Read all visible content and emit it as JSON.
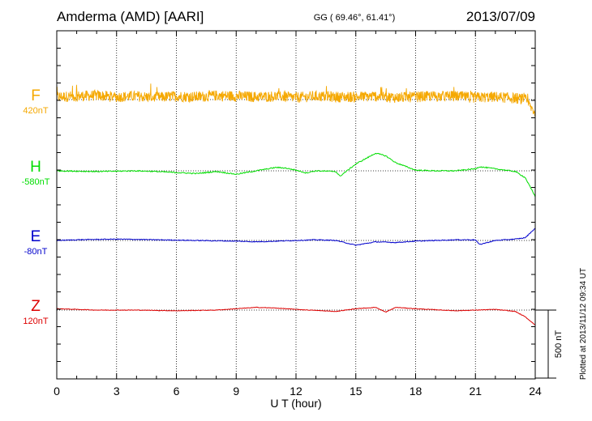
{
  "header": {
    "station": "Amderma (AMD)  [AARI]",
    "coords": "GG ( 69.46°,  61.41°)",
    "date": "2013/07/09"
  },
  "footer": {
    "plotted": "Plotted at 2013/11/12 09:34 UT",
    "scale": "500 nT"
  },
  "colors": {
    "F": "#f5a800",
    "H": "#00dd00",
    "E": "#0000cc",
    "Z": "#dd0000",
    "frame": "#000000"
  },
  "chart_data": {
    "type": "line",
    "title": "Amderma (AMD)  [AARI]",
    "xlabel": "U T (hour)",
    "ylabel": "",
    "xlim": [
      0,
      24
    ],
    "xticks": [
      0,
      3,
      6,
      9,
      12,
      15,
      18,
      21,
      24
    ],
    "grid": true,
    "scale_bar_nT": 500,
    "series": [
      {
        "name": "F",
        "baseline": "420nT",
        "noise_nT": 40,
        "points": [
          [
            0,
            20
          ],
          [
            1,
            25
          ],
          [
            2,
            30
          ],
          [
            3,
            20
          ],
          [
            4,
            25
          ],
          [
            5,
            15
          ],
          [
            6,
            25
          ],
          [
            7,
            20
          ],
          [
            8,
            30
          ],
          [
            9,
            25
          ],
          [
            10,
            20
          ],
          [
            11,
            25
          ],
          [
            12,
            15
          ],
          [
            13,
            25
          ],
          [
            14,
            20
          ],
          [
            15,
            20
          ],
          [
            16,
            25
          ],
          [
            17,
            15
          ],
          [
            18,
            20
          ],
          [
            19,
            25
          ],
          [
            20,
            25
          ],
          [
            21,
            15
          ],
          [
            22,
            20
          ],
          [
            23,
            10
          ],
          [
            23.5,
            0
          ],
          [
            24,
            -100
          ]
        ]
      },
      {
        "name": "H",
        "baseline": "-580nT",
        "noise_nT": 4,
        "points": [
          [
            0,
            0
          ],
          [
            2,
            -5
          ],
          [
            4,
            0
          ],
          [
            5,
            -5
          ],
          [
            7,
            -20
          ],
          [
            8,
            -5
          ],
          [
            9,
            -25
          ],
          [
            10,
            0
          ],
          [
            11,
            25
          ],
          [
            11.5,
            20
          ],
          [
            12,
            5
          ],
          [
            12.5,
            -15
          ],
          [
            13,
            0
          ],
          [
            14,
            -5
          ],
          [
            14.2,
            -40
          ],
          [
            15,
            50
          ],
          [
            16,
            130
          ],
          [
            16.5,
            110
          ],
          [
            17,
            60
          ],
          [
            18,
            5
          ],
          [
            19,
            0
          ],
          [
            20,
            0
          ],
          [
            21,
            15
          ],
          [
            21.2,
            30
          ],
          [
            22,
            15
          ],
          [
            23,
            -5
          ],
          [
            23.5,
            -50
          ],
          [
            24,
            -190
          ]
        ]
      },
      {
        "name": "E",
        "baseline": "-80nT",
        "noise_nT": 3,
        "points": [
          [
            0,
            0
          ],
          [
            1,
            5
          ],
          [
            3,
            10
          ],
          [
            5,
            5
          ],
          [
            7,
            0
          ],
          [
            9,
            -5
          ],
          [
            10,
            -10
          ],
          [
            11,
            -5
          ],
          [
            12,
            0
          ],
          [
            13,
            5
          ],
          [
            14,
            0
          ],
          [
            15,
            -35
          ],
          [
            16,
            -10
          ],
          [
            17,
            -15
          ],
          [
            18,
            -5
          ],
          [
            20,
            5
          ],
          [
            21,
            5
          ],
          [
            21.2,
            -30
          ],
          [
            22,
            0
          ],
          [
            23,
            10
          ],
          [
            23.5,
            20
          ],
          [
            24,
            90
          ]
        ]
      },
      {
        "name": "Z",
        "baseline": "120nT",
        "noise_nT": 2,
        "points": [
          [
            0,
            10
          ],
          [
            2,
            0
          ],
          [
            4,
            0
          ],
          [
            6,
            -5
          ],
          [
            8,
            0
          ],
          [
            10,
            20
          ],
          [
            11,
            15
          ],
          [
            12,
            5
          ],
          [
            14,
            -10
          ],
          [
            15,
            10
          ],
          [
            16,
            20
          ],
          [
            16.5,
            -15
          ],
          [
            17,
            20
          ],
          [
            18,
            10
          ],
          [
            20,
            -5
          ],
          [
            21,
            0
          ],
          [
            22,
            5
          ],
          [
            23,
            -10
          ],
          [
            23.5,
            -50
          ],
          [
            24,
            -110
          ]
        ]
      }
    ]
  }
}
